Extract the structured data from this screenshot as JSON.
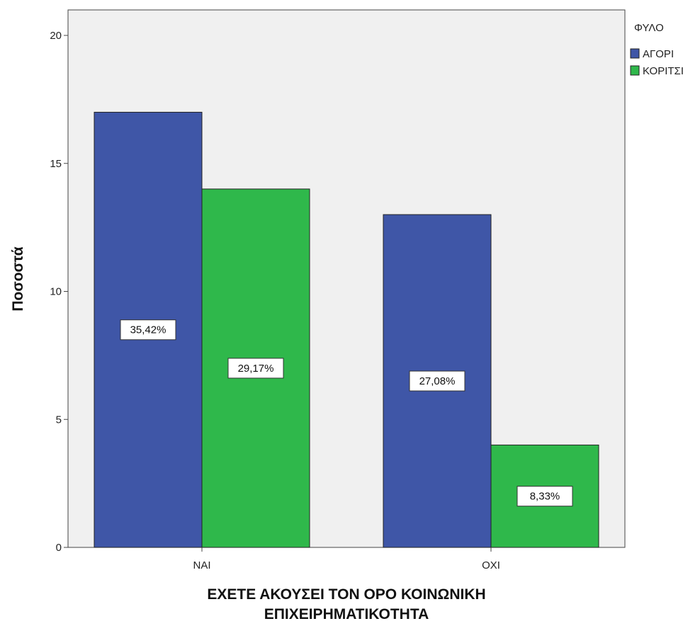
{
  "chart_data": {
    "type": "bar",
    "title": "",
    "xlabel": "ΕΧΕΤΕ ΑΚΟΥΣΕΙ ΤΟΝ ΟΡΟ ΚΟΙΝΩΝΙΚΗ ΕΠΙΧΕΙΡΗΜΑΤΙΚΟΤΗΤΑ",
    "xlabel_lines": [
      "ΕΧΕΤΕ ΑΚΟΥΣΕΙ ΤΟΝ ΟΡΟ ΚΟΙΝΩΝΙΚΗ",
      "ΕΠΙΧΕΙΡΗΜΑΤΙΚΟΤΗΤΑ"
    ],
    "ylabel": "Ποσοστά",
    "ylim": [
      0,
      20
    ],
    "yticks": [
      0,
      5,
      10,
      15,
      20
    ],
    "grid": false,
    "legend_title": "ΦΥΛΟ",
    "legend_position": "top-right",
    "categories": [
      "ΝΑΙ",
      "ΟΧΙ"
    ],
    "series": [
      {
        "name": "ΑΓΟΡΙ",
        "color": "#3f56a7",
        "values": [
          17,
          13
        ],
        "labels": [
          "35,42%",
          "27,08%"
        ]
      },
      {
        "name": "ΚΟΡΙΤΣΙ",
        "color": "#2fb84b",
        "values": [
          14,
          4
        ],
        "labels": [
          "29,17%",
          "8,33%"
        ]
      }
    ],
    "plot_background": "#f0f0f0"
  }
}
